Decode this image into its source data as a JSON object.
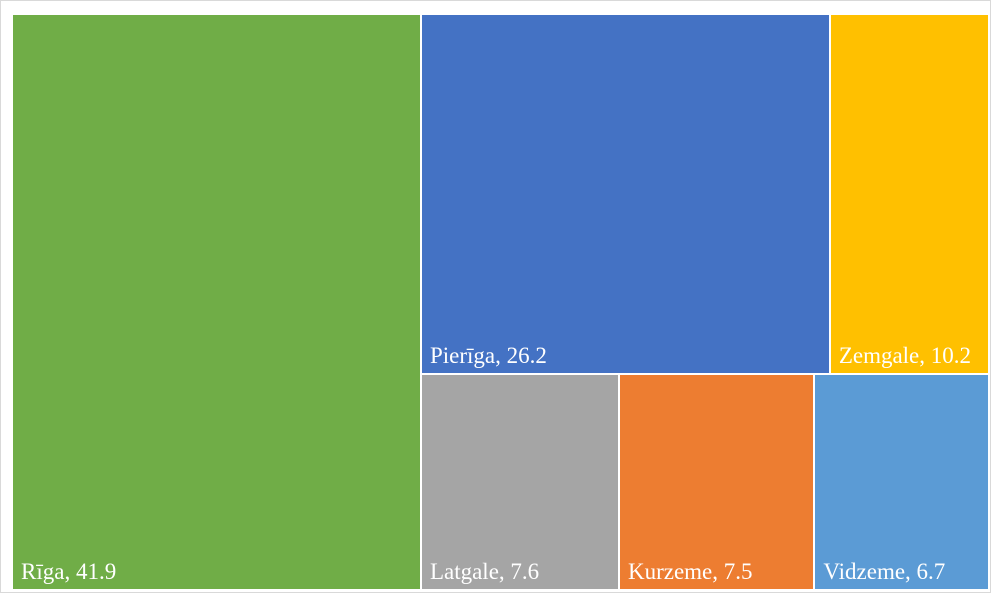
{
  "chart_data": {
    "type": "treemap",
    "labels": [
      "Rīga, 41.9",
      "Pierīga, 26.2",
      "Zemgale, 10.2",
      "Latgale, 7.6",
      "Kurzeme, 7.5",
      "Vidzeme, 6.7"
    ],
    "values": [
      41.9,
      26.2,
      10.2,
      7.6,
      7.5,
      6.7
    ],
    "colors": [
      "#70ad47",
      "#4472c4",
      "#ffc000",
      "#a5a5a5",
      "#ed7d31",
      "#5b9bd5"
    ]
  }
}
